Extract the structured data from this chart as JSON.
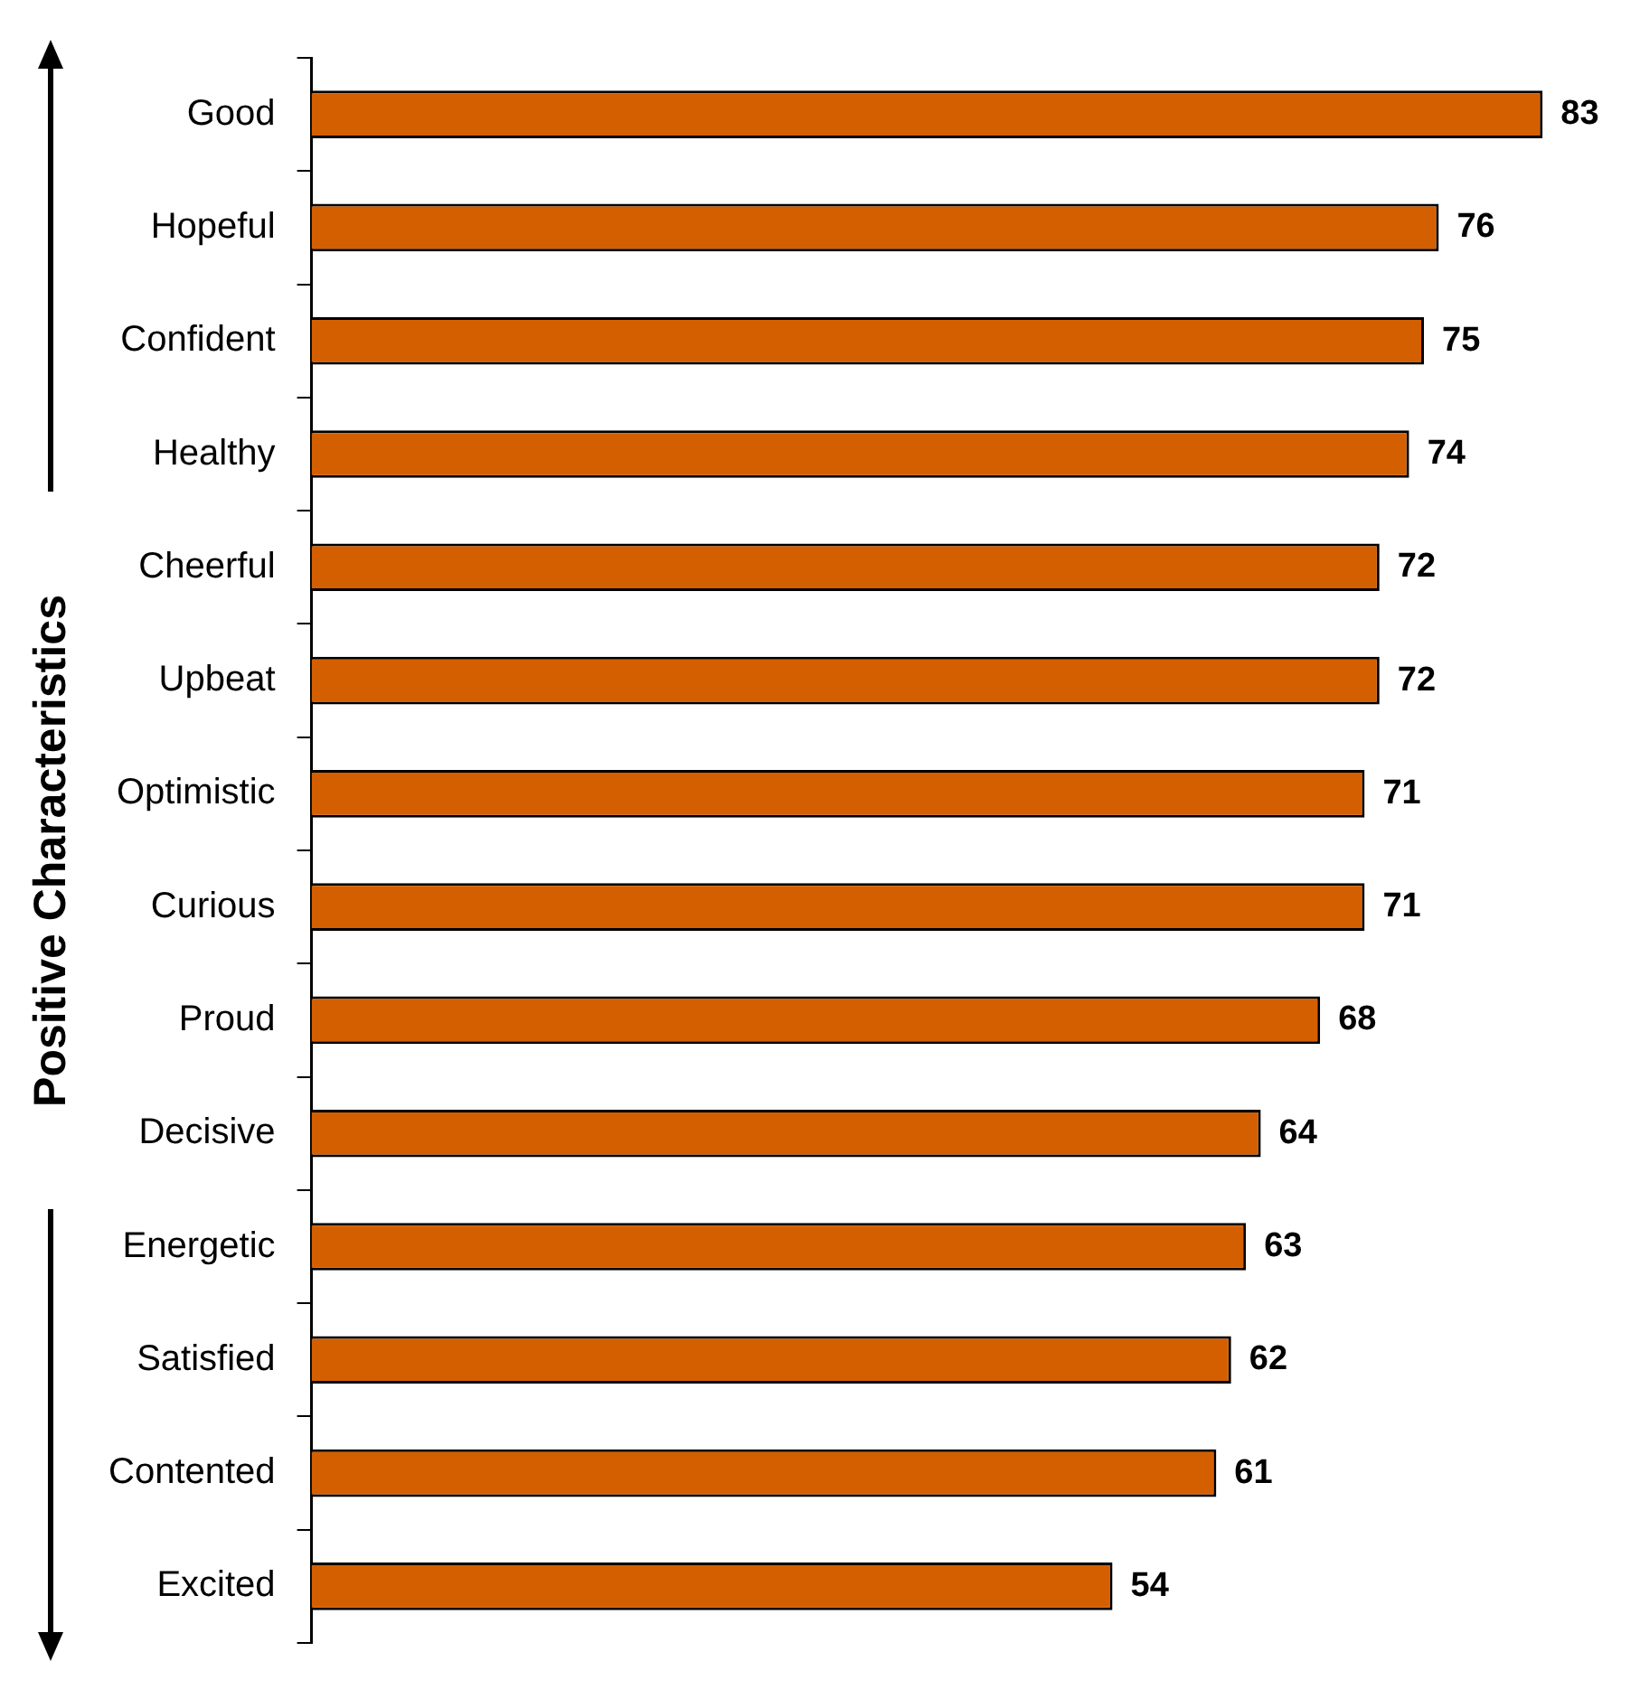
{
  "chart_data": {
    "type": "bar",
    "orientation": "horizontal",
    "ylabel": "Positive Characteristics",
    "categories": [
      "Good",
      "Hopeful",
      "Confident",
      "Healthy",
      "Cheerful",
      "Upbeat",
      "Optimistic",
      "Curious",
      "Proud",
      "Decisive",
      "Energetic",
      "Satisfied",
      "Contented",
      "Excited"
    ],
    "values": [
      83,
      76,
      75,
      74,
      72,
      72,
      71,
      71,
      68,
      64,
      63,
      62,
      61,
      54
    ],
    "color": "#d45f00",
    "data_labels": true,
    "grid": false,
    "legend": false
  }
}
